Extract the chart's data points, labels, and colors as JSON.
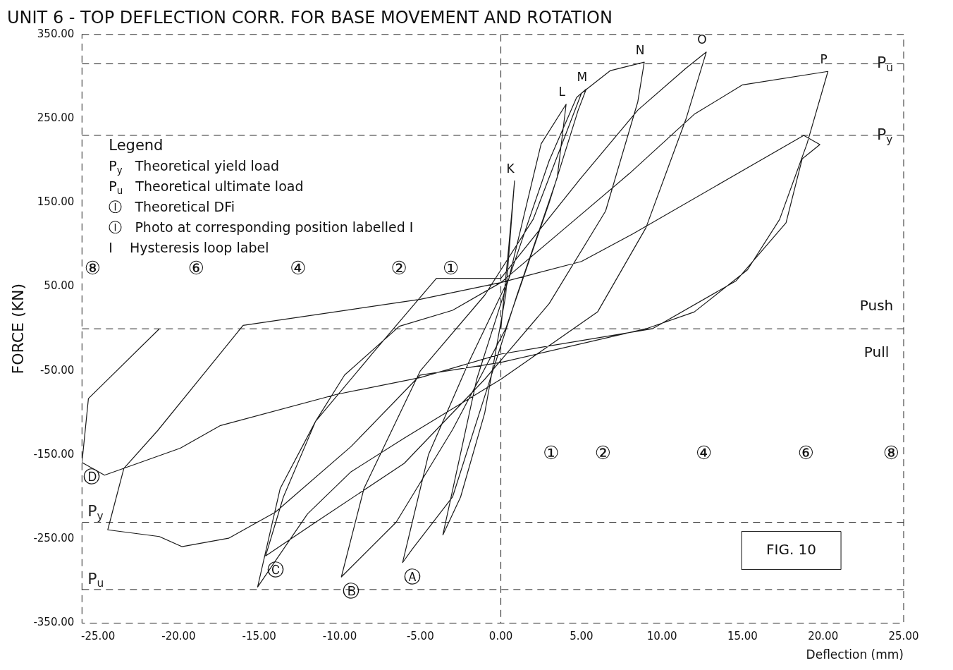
{
  "chart_data": {
    "type": "line",
    "title": "UNIT 6 - TOP DEFLECTION CORR. FOR BASE MOVEMENT AND ROTATION",
    "xlabel": "Deflection (mm)",
    "ylabel": "FORCE (KN)",
    "xlim": [
      -26,
      25
    ],
    "ylim": [
      -350,
      350
    ],
    "xticks": [
      {
        "value": -25,
        "label": "-25.00"
      },
      {
        "value": -20,
        "label": "-20.00"
      },
      {
        "value": -15,
        "label": "-15.00"
      },
      {
        "value": -10,
        "label": "-10.00"
      },
      {
        "value": -5,
        "label": "-5.00"
      },
      {
        "value": 0,
        "label": "0.00"
      },
      {
        "value": 5,
        "label": "5.00"
      },
      {
        "value": 10,
        "label": "10.00"
      },
      {
        "value": 15,
        "label": "15.00"
      },
      {
        "value": 20,
        "label": "20.00"
      },
      {
        "value": 25,
        "label": "25.00"
      }
    ],
    "yticks": [
      {
        "value": -350,
        "label": "-350.00"
      },
      {
        "value": -250,
        "label": "-250.00"
      },
      {
        "value": -150,
        "label": "-150.00"
      },
      {
        "value": -50,
        "label": "-50.00"
      },
      {
        "value": 50,
        "label": "50.00"
      },
      {
        "value": 150,
        "label": "150.00"
      },
      {
        "value": 250,
        "label": "250.00"
      },
      {
        "value": 350,
        "label": "350.00"
      }
    ],
    "grid": false,
    "legend": false,
    "marker": "none",
    "line_style": "solid",
    "series": [
      {
        "color": "#1a1a1a",
        "x": [
          0,
          0.5,
          0.85,
          0.3,
          -1,
          -2.5,
          -3.6,
          -1.5,
          0.5,
          2.5,
          4.05,
          3.5,
          1,
          -0.5,
          -3,
          -5.5,
          -6.1,
          -4.5,
          -2,
          0.5,
          3,
          4.7,
          5.3,
          4.8,
          3,
          0.3,
          -3,
          -6.5,
          -9.9,
          -8.5,
          -5,
          -1,
          2,
          5,
          6.8,
          8.9,
          8.5,
          6.5,
          3,
          -1,
          -6,
          -11.5,
          -14.6,
          -13.5,
          -11.5,
          -8,
          -4,
          0,
          5,
          8.5,
          11.5,
          12.75,
          11.5,
          9,
          6,
          0,
          -6,
          -9.3,
          -12,
          -15.1,
          -13.7,
          -11.5,
          -9.7,
          -6.3,
          -3,
          0,
          4,
          8,
          12,
          15,
          20.3,
          19,
          17.3,
          15.3,
          12,
          9,
          0,
          -5,
          -9.3,
          -14,
          -16.9,
          -19.8,
          -21.2,
          -24.4,
          -23.4,
          -21.3,
          -16,
          -5,
          0,
          5,
          8.2,
          18.8,
          19.8,
          18.7,
          17.7,
          14.6,
          9.4,
          0,
          -5,
          -10.2,
          -17.4,
          -19.9,
          -24.6,
          -26,
          -25.6,
          -21.2
        ],
        "values": [
          0,
          100,
          176,
          40,
          -100,
          -200,
          -245,
          -60,
          60,
          220,
          267,
          180,
          40,
          -50,
          -200,
          -262,
          -278,
          -150,
          -40,
          60,
          200,
          275,
          285,
          260,
          150,
          0,
          -120,
          -230,
          -295,
          -190,
          -50,
          40,
          130,
          280,
          307,
          317,
          270,
          140,
          30,
          -60,
          -160,
          -230,
          -270,
          -200,
          -110,
          -30,
          60,
          60,
          180,
          260,
          310,
          329,
          250,
          120,
          20,
          -60,
          -130,
          -170,
          -220,
          -307,
          -190,
          -110,
          -55,
          3,
          22,
          55,
          120,
          185,
          255,
          290,
          306,
          220,
          130,
          70,
          20,
          0,
          -40,
          -55,
          -140,
          -218,
          -249,
          -259,
          -247,
          -239,
          -166,
          -121,
          4,
          35,
          55,
          80,
          113,
          230,
          219,
          202,
          126,
          57,
          0,
          -30,
          -58,
          -78,
          -115,
          -142,
          -174,
          -159,
          -83,
          0
        ]
      }
    ],
    "ref_lines": [
      {
        "axis": "y",
        "value": 315,
        "label": "P$_{u}$",
        "line_style": "dashed"
      },
      {
        "axis": "y",
        "value": 230,
        "label": "P$_{y}$",
        "line_style": "dashed"
      },
      {
        "axis": "y",
        "value": -230,
        "label": "P$_{y}$",
        "line_style": "dashed"
      },
      {
        "axis": "y",
        "value": -310,
        "label": "P$_{u}$",
        "line_style": "dashed"
      },
      {
        "axis": "y",
        "value": 0,
        "line_style": "dashed"
      },
      {
        "axis": "x",
        "value": 0,
        "line_style": "dashed"
      }
    ],
    "annotations": [
      "Legend",
      "P$_{y}$   Theoretical yield load",
      "P$_{u}$   Theoretical ultimate load",
      "Ⓘ   Theoretical DFi",
      "Ⓘ   Photo at corresponding position labelled I",
      "I    Hysteresis loop label",
      "FIG. 10",
      "Push",
      "Pull",
      "⑧",
      "⑥",
      "④",
      "②",
      "①",
      "①",
      "②",
      "④",
      "⑥",
      "⑧",
      {
        "text": "K",
        "x": 0.85,
        "y": 176
      },
      {
        "text": "L",
        "x": 4.05,
        "y": 267
      },
      {
        "text": "M",
        "x": 5.3,
        "y": 285
      },
      {
        "text": "N",
        "x": 8.9,
        "y": 317
      },
      {
        "text": "O",
        "x": 12.75,
        "y": 329
      },
      {
        "text": "P",
        "x": 20.3,
        "y": 306
      },
      {
        "text": "Ⓐ",
        "x": -6.1,
        "y": -278
      },
      {
        "text": "Ⓑ",
        "x": -9.9,
        "y": -295
      },
      {
        "text": "Ⓒ",
        "x": -14.6,
        "y": -270
      },
      {
        "text": "Ⓓ",
        "x": -26,
        "y": -159
      }
    ]
  }
}
